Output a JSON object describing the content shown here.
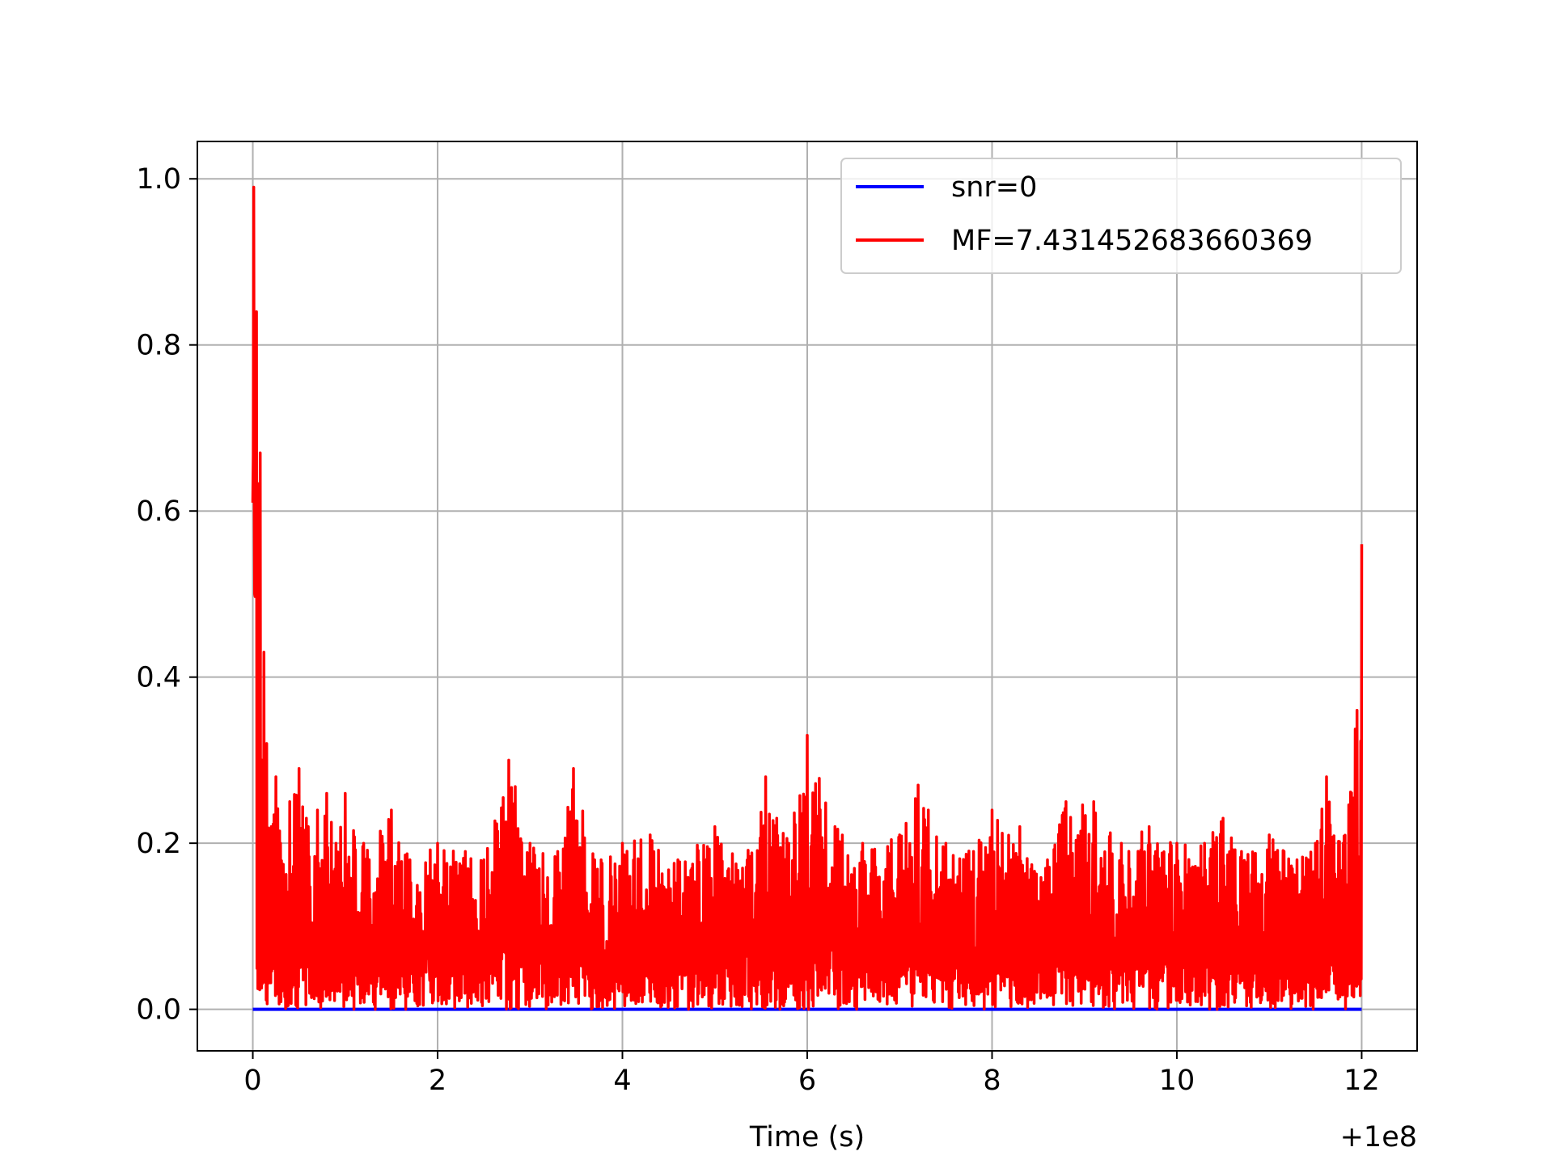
{
  "chart_data": {
    "type": "line",
    "title": "",
    "xlabel": "Time (s)",
    "ylabel": "",
    "x_offset_label": "+1e8",
    "xlim": [
      -0.6,
      12.6
    ],
    "ylim": [
      -0.05,
      1.045
    ],
    "grid": true,
    "legend_position": "top-right",
    "xticks": [
      0,
      2,
      4,
      6,
      8,
      10,
      12
    ],
    "xtick_labels": [
      "0",
      "2",
      "4",
      "6",
      "8",
      "10",
      "12"
    ],
    "yticks": [
      0.0,
      0.2,
      0.4,
      0.6,
      0.8,
      1.0
    ],
    "ytick_labels": [
      "0.0",
      "0.2",
      "0.4",
      "0.6",
      "0.8",
      "1.0"
    ],
    "series": [
      {
        "name": "snr=0",
        "color": "#0000ff",
        "x": [
          0,
          12
        ],
        "y": [
          0,
          0
        ]
      },
      {
        "name": "MF=7.431452683660369",
        "color": "#ff0000",
        "x": [
          0,
          0.01,
          0.02,
          0.04,
          0.06,
          0.08,
          0.1,
          0.12,
          0.15,
          0.2,
          0.25,
          0.3,
          0.4,
          0.5,
          0.6,
          0.7,
          0.8,
          0.9,
          1.0,
          1.2,
          1.5,
          1.7,
          2.0,
          2.3,
          2.5,
          2.77,
          3.0,
          3.3,
          3.47,
          3.7,
          4.0,
          4.3,
          4.6,
          5.0,
          5.3,
          5.55,
          5.8,
          6.0,
          6.3,
          6.6,
          7.0,
          7.2,
          7.5,
          7.8,
          8.0,
          8.3,
          8.6,
          8.8,
          9.1,
          9.4,
          9.7,
          10.0,
          10.3,
          10.5,
          10.7,
          11.0,
          11.3,
          11.5,
          11.62,
          11.8,
          11.95,
          11.98,
          12.0
        ],
        "y": [
          0.61,
          0.99,
          0.5,
          0.84,
          0.45,
          0.67,
          0.3,
          0.43,
          0.32,
          0.22,
          0.28,
          0.2,
          0.25,
          0.29,
          0.22,
          0.24,
          0.26,
          0.2,
          0.26,
          0.2,
          0.24,
          0.18,
          0.2,
          0.19,
          0.18,
          0.3,
          0.2,
          0.19,
          0.29,
          0.18,
          0.2,
          0.21,
          0.18,
          0.22,
          0.17,
          0.28,
          0.2,
          0.33,
          0.22,
          0.2,
          0.21,
          0.27,
          0.2,
          0.19,
          0.24,
          0.22,
          0.18,
          0.25,
          0.25,
          0.2,
          0.22,
          0.2,
          0.2,
          0.23,
          0.19,
          0.21,
          0.18,
          0.2,
          0.28,
          0.2,
          0.36,
          0.14,
          0.56
        ]
      }
    ]
  }
}
